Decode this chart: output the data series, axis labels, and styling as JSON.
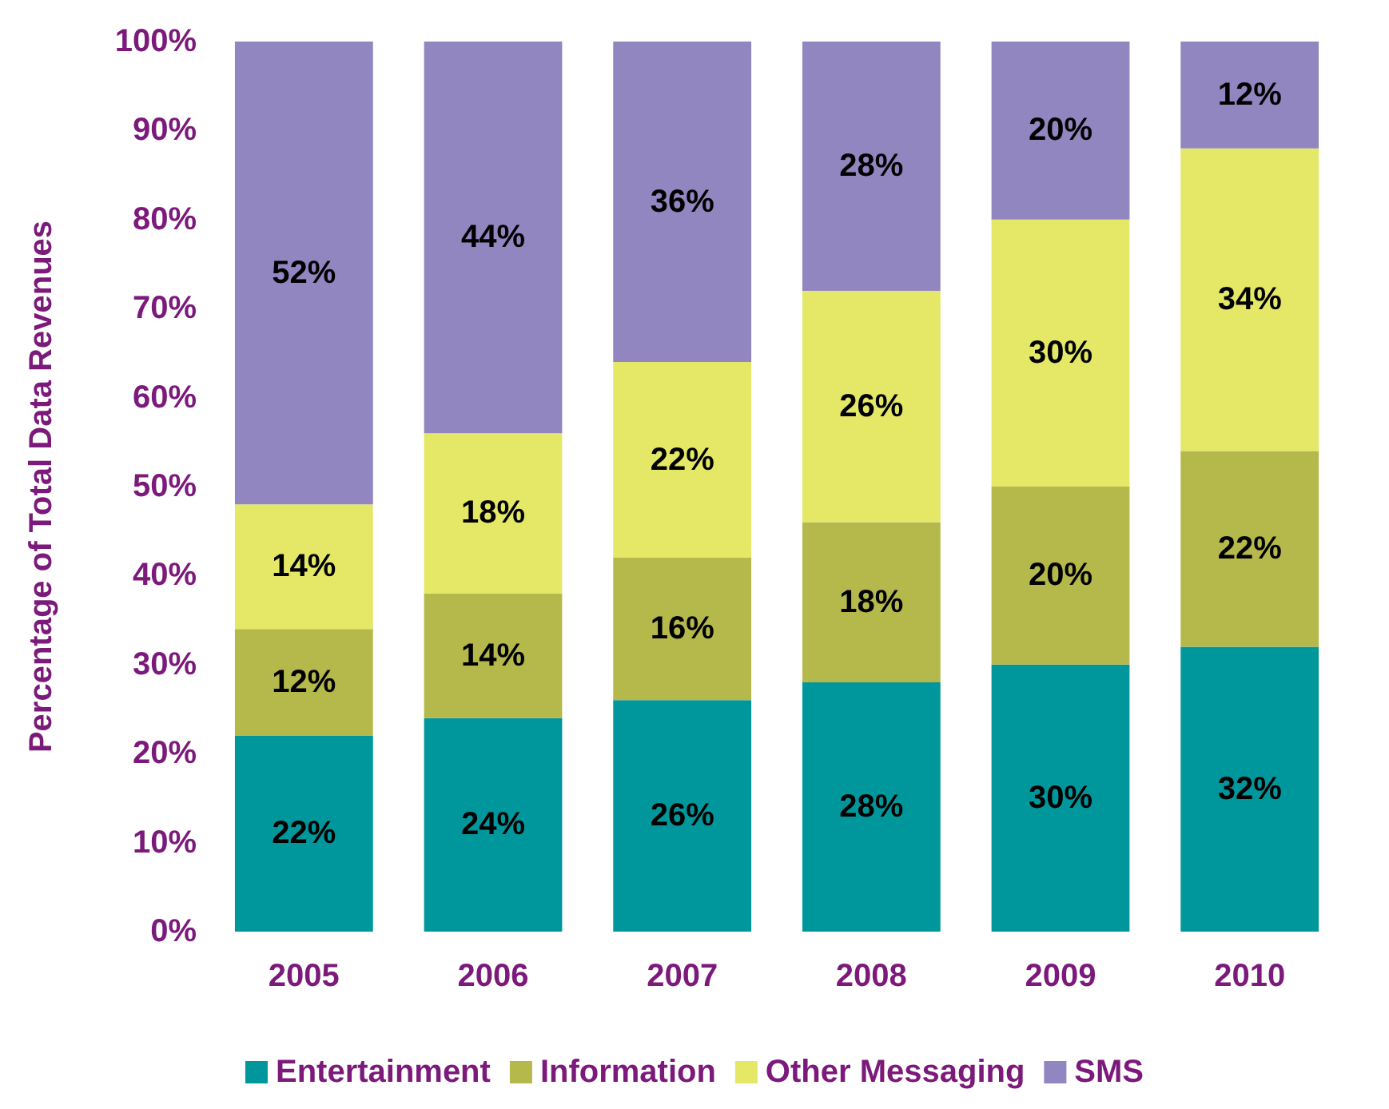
{
  "chart_data": {
    "type": "bar",
    "stacked": true,
    "ylabel": "Percentage of Total Data Revenues",
    "categories": [
      "2005",
      "2006",
      "2007",
      "2008",
      "2009",
      "2010"
    ],
    "series": [
      {
        "name": "Entertainment",
        "color": "#00979c",
        "values": [
          22,
          24,
          26,
          28,
          30,
          32
        ],
        "value_labels": [
          "22%",
          "24%",
          "26%",
          "28%",
          "30%",
          "32%"
        ]
      },
      {
        "name": "Information",
        "color": "#b5b84b",
        "values": [
          12,
          14,
          16,
          18,
          20,
          22
        ],
        "value_labels": [
          "12%",
          "14%",
          "16%",
          "18%",
          "20%",
          "22%"
        ]
      },
      {
        "name": "Other Messaging",
        "color": "#e4e866",
        "values": [
          14,
          18,
          22,
          26,
          30,
          34
        ],
        "value_labels": [
          "14%",
          "18%",
          "22%",
          "26%",
          "30%",
          "34%"
        ]
      },
      {
        "name": "SMS",
        "color": "#9186c0",
        "values": [
          52,
          44,
          36,
          28,
          20,
          12
        ],
        "value_labels": [
          "52%",
          "44%",
          "36%",
          "28%",
          "20%",
          "12%"
        ]
      }
    ],
    "ylim": [
      0,
      100
    ],
    "yticks": [
      {
        "value": 0,
        "label": "0%"
      },
      {
        "value": 10,
        "label": "10%"
      },
      {
        "value": 20,
        "label": "20%"
      },
      {
        "value": 30,
        "label": "30%"
      },
      {
        "value": 40,
        "label": "40%"
      },
      {
        "value": 50,
        "label": "50%"
      },
      {
        "value": 60,
        "label": "60%"
      },
      {
        "value": 70,
        "label": "70%"
      },
      {
        "value": 80,
        "label": "80%"
      },
      {
        "value": 90,
        "label": "90%"
      },
      {
        "value": 100,
        "label": "100%"
      }
    ],
    "grid": false,
    "legend": "bottom"
  }
}
